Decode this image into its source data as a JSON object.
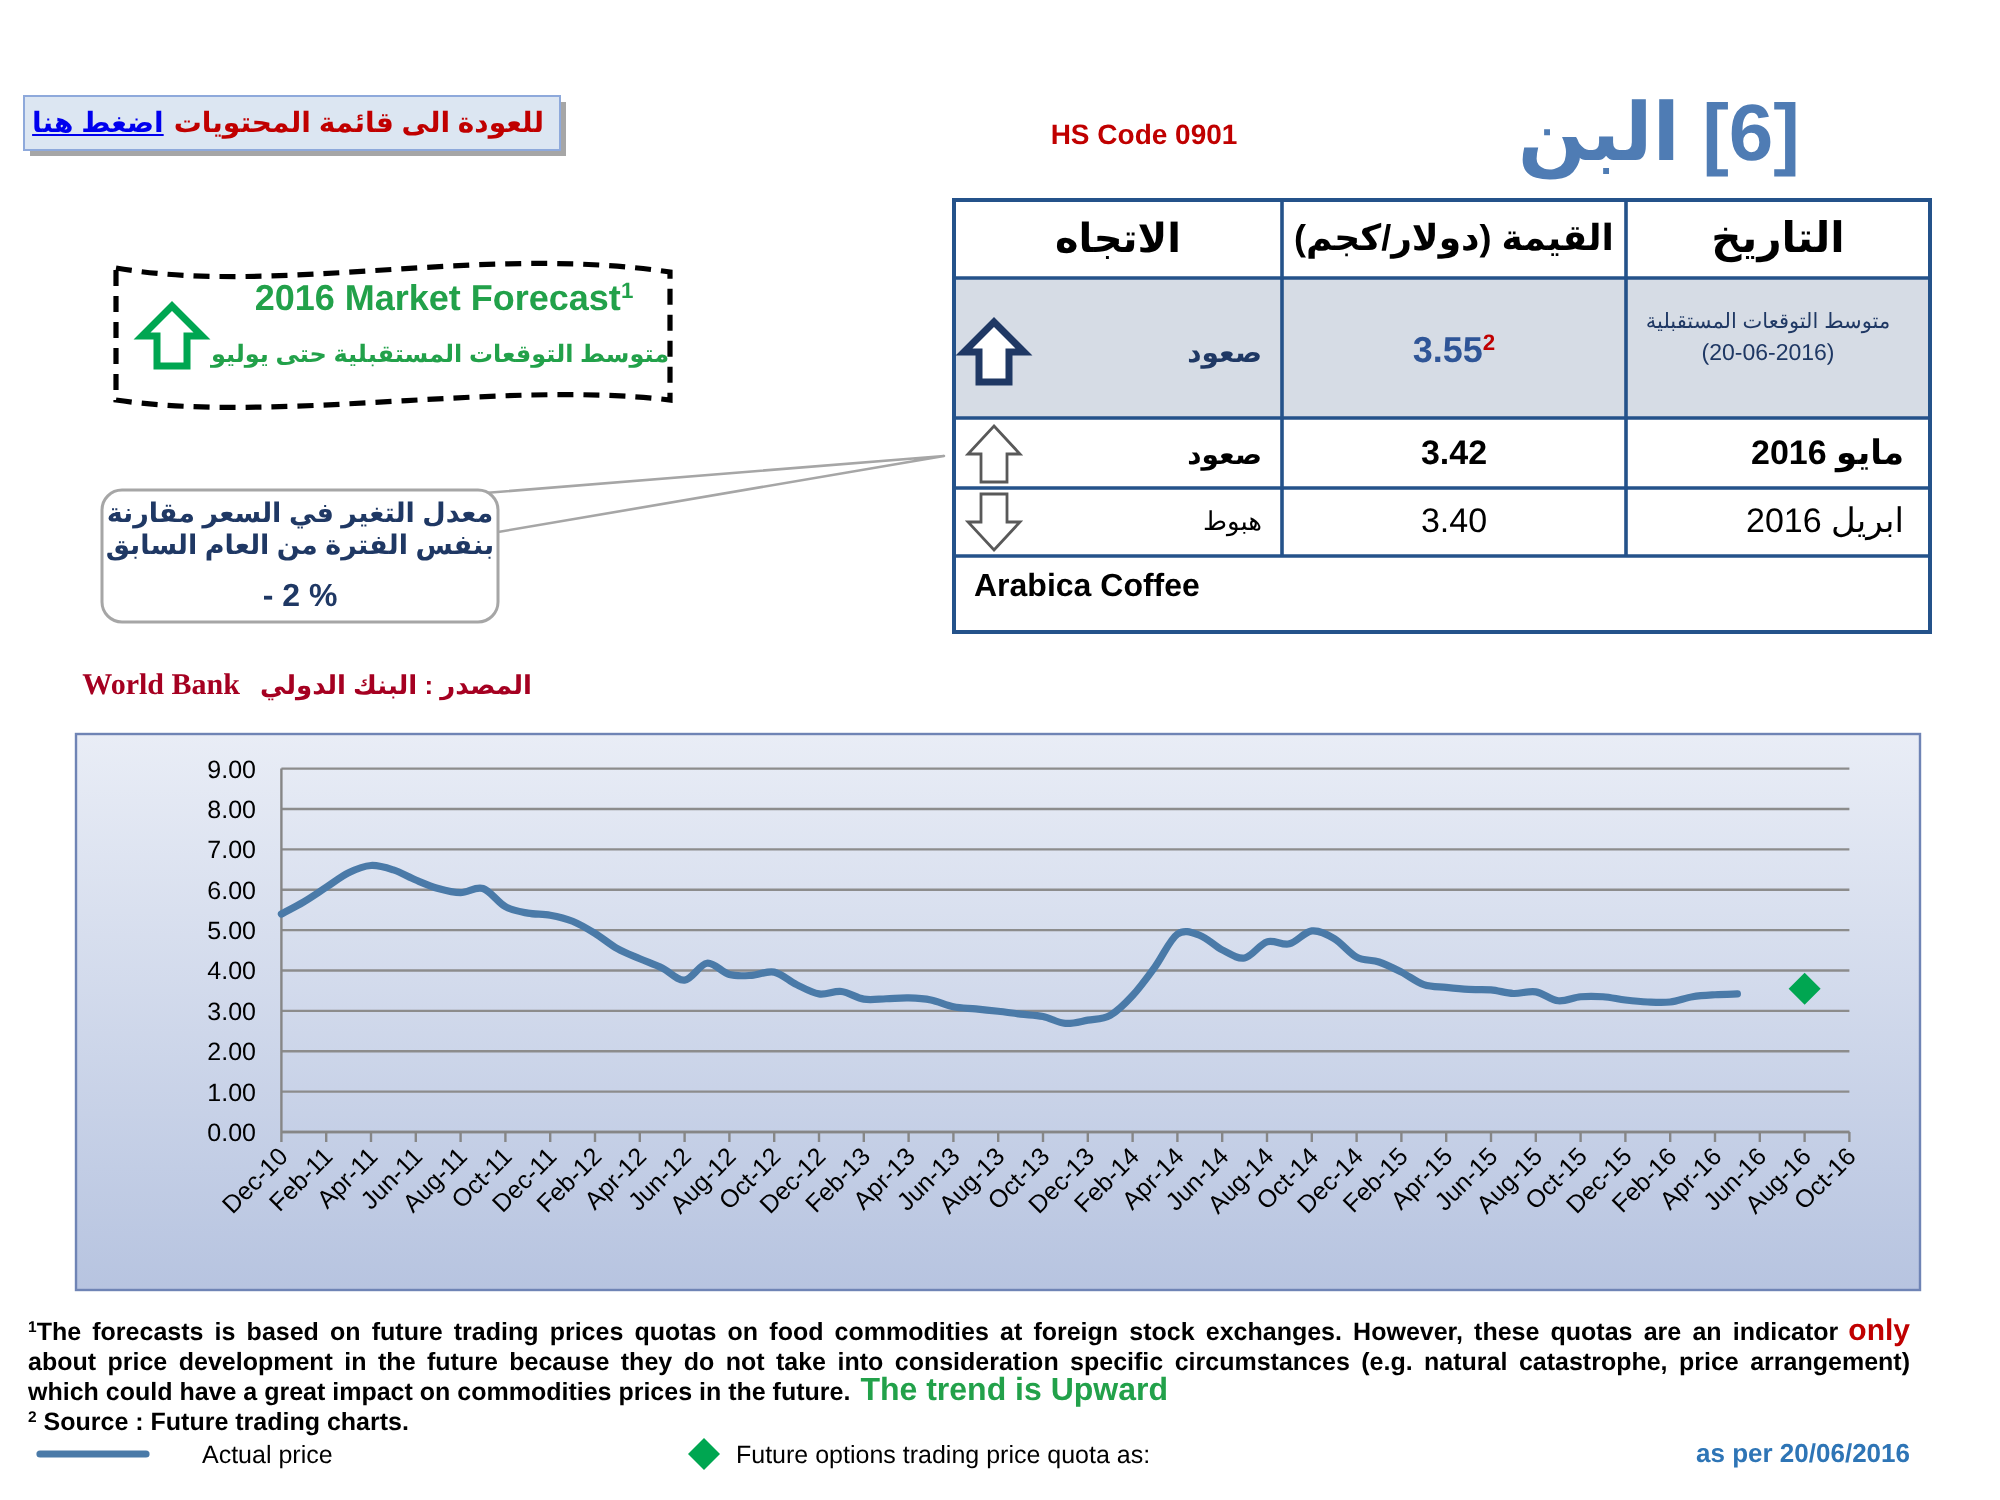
{
  "chart_data": [
    {
      "type": "other",
      "title": "[6] البن",
      "subtitle": "HS Code 0901",
      "annotations": [
        "للعودة الى قائمة المحتويات",
        "اضغط هنا",
        "2016 Market Forecast$^{1}$",
        "متوسط التوقعات المستقبلية حتى يوليو",
        "معدل التغير في السعر مقارنة بنفس الفترة من العام السابق",
        "- 2 %",
        "التاريخ",
        "القيمة (دولار/كجم)",
        "الاتجاه",
        "متوسط التوقعات المستقبلية",
        "(20-06-2016)",
        "3.55$^{2}$",
        "صعود",
        "مايو 2016",
        "3.42",
        "صعود",
        "ابريل 2016",
        "3.40",
        "هبوط",
        "Arabica Coffee"
      ]
    },
    {
      "type": "line",
      "categories": [
        "Dec-10",
        null,
        "Feb-11",
        null,
        "Apr-11",
        null,
        "Jun-11",
        null,
        "Aug-11",
        null,
        "Oct-11",
        null,
        "Dec-11",
        null,
        "Feb-12",
        null,
        "Apr-12",
        null,
        "Jun-12",
        null,
        "Aug-12",
        null,
        "Oct-12",
        null,
        "Dec-12",
        null,
        "Feb-13",
        null,
        "Apr-13",
        null,
        "Jun-13",
        null,
        "Aug-13",
        null,
        "Oct-13",
        null,
        "Dec-13",
        null,
        "Feb-14",
        null,
        "Apr-14",
        null,
        "Jun-14",
        null,
        "Aug-14",
        null,
        "Oct-14",
        null,
        "Dec-14",
        null,
        "Feb-15",
        null,
        "Apr-15",
        null,
        "Jun-15",
        null,
        "Aug-15",
        null,
        "Oct-15",
        null,
        "Dec-15",
        null,
        "Feb-16",
        null,
        "Apr-16",
        null,
        "Jun-16",
        null,
        "Aug-16",
        null,
        "Oct-16"
      ],
      "ylim": [
        0,
        9
      ],
      "yticks": [
        {
          "value": 0,
          "label": "0.00"
        },
        {
          "value": 1,
          "label": "1.00"
        },
        {
          "value": 2,
          "label": "2.00"
        },
        {
          "value": 3,
          "label": "3.00"
        },
        {
          "value": 4,
          "label": "4.00"
        },
        {
          "value": 5,
          "label": "5.00"
        },
        {
          "value": 6,
          "label": "6.00"
        },
        {
          "value": 7,
          "label": "7.00"
        },
        {
          "value": 8,
          "label": "8.00"
        },
        {
          "value": 9,
          "label": "9.00"
        }
      ],
      "grid": "y",
      "legend": "bottom",
      "series": [
        {
          "name": "Actual price",
          "type": "line",
          "color": "#4a7aa8",
          "marker": "none",
          "line_style": "solid",
          "values": [
            5.4,
            5.7,
            6.06,
            6.42,
            6.6,
            6.49,
            6.24,
            6.03,
            5.93,
            6.03,
            5.58,
            5.42,
            5.37,
            5.22,
            4.92,
            4.54,
            4.29,
            4.06,
            3.76,
            4.18,
            3.9,
            3.88,
            3.96,
            3.65,
            3.42,
            3.48,
            3.29,
            3.3,
            3.32,
            3.27,
            3.1,
            3.05,
            2.99,
            2.92,
            2.86,
            2.69,
            2.77,
            2.89,
            3.38,
            4.09,
            4.9,
            4.87,
            4.51,
            4.31,
            4.71,
            4.66,
            4.98,
            4.79,
            4.33,
            4.21,
            3.96,
            3.65,
            3.58,
            3.53,
            3.52,
            3.43,
            3.47,
            3.25,
            3.35,
            3.35,
            3.27,
            3.22,
            3.22,
            3.35,
            3.4,
            3.42,
            null,
            null,
            null,
            null,
            null
          ]
        },
        {
          "name": "Future options trading price quota as:",
          "type": "scatter",
          "color": "#00a651",
          "marker": "diamond",
          "values": [
            null,
            null,
            null,
            null,
            null,
            null,
            null,
            null,
            null,
            null,
            null,
            null,
            null,
            null,
            null,
            null,
            null,
            null,
            null,
            null,
            null,
            null,
            null,
            null,
            null,
            null,
            null,
            null,
            null,
            null,
            null,
            null,
            null,
            null,
            null,
            null,
            null,
            null,
            null,
            null,
            null,
            null,
            null,
            null,
            null,
            null,
            null,
            null,
            null,
            null,
            null,
            null,
            null,
            null,
            null,
            null,
            null,
            null,
            null,
            null,
            null,
            null,
            null,
            null,
            null,
            null,
            null,
            null,
            3.55,
            null,
            null
          ]
        }
      ],
      "annotations": [
        "المصدر : البنك الدولي",
        "World Bank",
        "$^{1}$The forecasts is based on future trading prices quotas on food commodities at foreign stock exchanges. However, these quotas are an indicator",
        "only",
        "about price development in the future because they do not take into consideration specific circumstances (e.g. natural catastrophe, price arrangement)",
        "which could have a great impact on commodities prices in the future.",
        "The trend is Upward",
        "$^{2}$ Source : Future trading charts.",
        "as per 20/06/2016"
      ]
    }
  ]
}
